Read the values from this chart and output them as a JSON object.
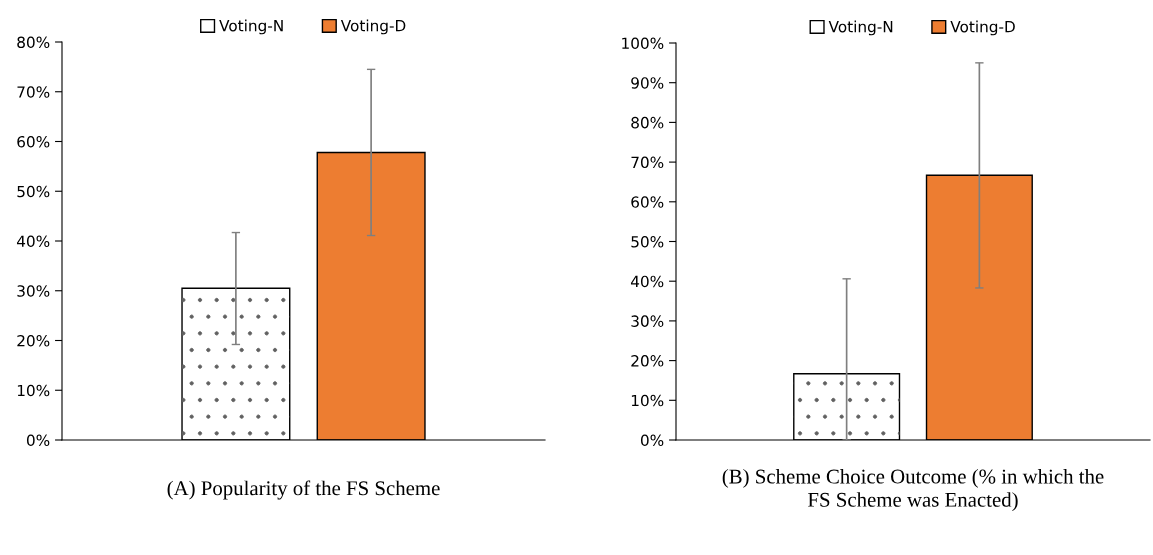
{
  "chart_data": [
    {
      "type": "bar",
      "title": "(A) Popularity of the FS Scheme",
      "categories": [
        null
      ],
      "legend": "top",
      "grid": false,
      "series": [
        {
          "name": "Voting-N",
          "color": "#ffffff",
          "values": [
            30.5
          ],
          "errors": [
            [
              19.2,
              41.7
            ]
          ]
        },
        {
          "name": "Voting-D",
          "color": "#ed7d31",
          "values": [
            57.8
          ],
          "errors": [
            [
              41.1,
              74.5
            ]
          ]
        }
      ],
      "ylim": [
        0,
        80
      ],
      "yticks": [
        {
          "value": 0,
          "label": "0%"
        },
        {
          "value": 10,
          "label": "10%"
        },
        {
          "value": 20,
          "label": "20%"
        },
        {
          "value": 30,
          "label": "30%"
        },
        {
          "value": 40,
          "label": "40%"
        },
        {
          "value": 50,
          "label": "50%"
        },
        {
          "value": 60,
          "label": "60%"
        },
        {
          "value": 70,
          "label": "70%"
        },
        {
          "value": 80,
          "label": "80%"
        }
      ]
    },
    {
      "type": "bar",
      "title": "(B) Scheme Choice Outcome (% in which the\nFS Scheme was Enacted)",
      "categories": [
        null
      ],
      "legend": "top",
      "grid": false,
      "series": [
        {
          "name": "Voting-N",
          "color": "#ffffff",
          "values": [
            16.7
          ],
          "errors": [
            [
              0,
              40.6
            ]
          ]
        },
        {
          "name": "Voting-D",
          "color": "#ed7d31",
          "values": [
            66.7
          ],
          "errors": [
            [
              38.3,
              95.0
            ]
          ]
        }
      ],
      "ylim": [
        0,
        100
      ],
      "yticks": [
        {
          "value": 0,
          "label": "0%"
        },
        {
          "value": 10,
          "label": "10%"
        },
        {
          "value": 20,
          "label": "20%"
        },
        {
          "value": 30,
          "label": "30%"
        },
        {
          "value": 40,
          "label": "40%"
        },
        {
          "value": 50,
          "label": "50%"
        },
        {
          "value": 60,
          "label": "60%"
        },
        {
          "value": 70,
          "label": "70%"
        },
        {
          "value": 80,
          "label": "80%"
        },
        {
          "value": 90,
          "label": "90%"
        },
        {
          "value": 100,
          "label": "100%"
        }
      ]
    }
  ]
}
